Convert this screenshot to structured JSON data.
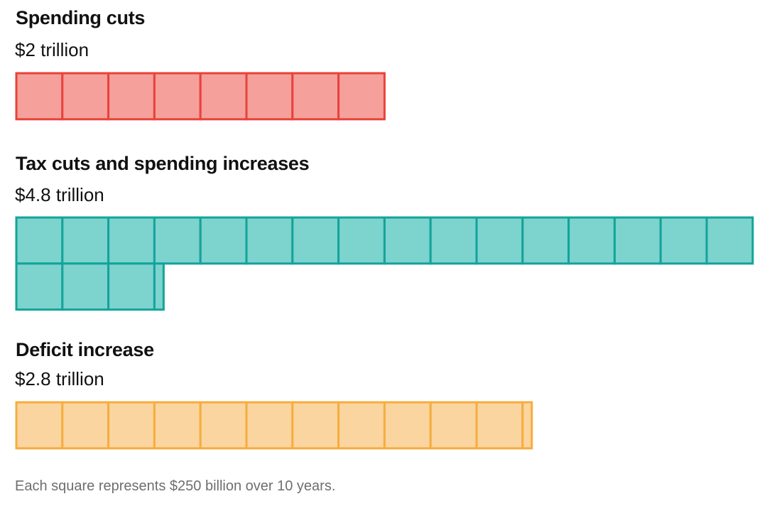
{
  "chart_data": {
    "type": "waffle",
    "unit_value_billion": 250,
    "unit_label": "Each square represents $250 billion over 10 years.",
    "squares_per_row": 16,
    "groups": [
      {
        "title": "Spending cuts",
        "amount": "$2 trillion",
        "value_trillion": 2.0,
        "squares": 8,
        "fill": "#f5a09b",
        "stroke": "#e8423b"
      },
      {
        "title": "Tax cuts and spending increases",
        "amount": "$4.8 trillion",
        "value_trillion": 4.8,
        "squares": 19.2,
        "fill": "#7dd3cd",
        "stroke": "#13a39b"
      },
      {
        "title": "Deficit increase",
        "amount": "$2.8 trillion",
        "value_trillion": 2.8,
        "squares": 11.2,
        "fill": "#fbd59f",
        "stroke": "#f5ad3e"
      }
    ]
  }
}
